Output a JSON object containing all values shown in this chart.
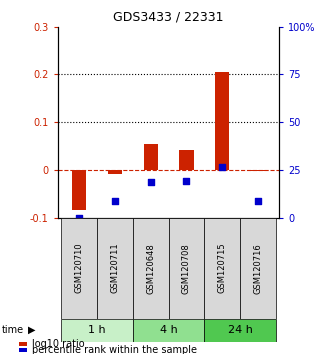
{
  "title": "GDS3433 / 22331",
  "samples": [
    "GSM120710",
    "GSM120711",
    "GSM120648",
    "GSM120708",
    "GSM120715",
    "GSM120716"
  ],
  "time_groups": [
    {
      "label": "1 h",
      "color": "#c8f0c8"
    },
    {
      "label": "4 h",
      "color": "#90e090"
    },
    {
      "label": "24 h",
      "color": "#50c850"
    }
  ],
  "log10_ratio": [
    -0.083,
    -0.008,
    0.055,
    0.042,
    0.205,
    -0.003
  ],
  "percentile_rank": [
    0.0,
    8.5,
    18.5,
    19.0,
    26.5,
    8.5
  ],
  "ylim_left": [
    -0.1,
    0.3
  ],
  "ylim_right": [
    0,
    100
  ],
  "yticks_left": [
    -0.1,
    0.0,
    0.1,
    0.2,
    0.3
  ],
  "yticks_right": [
    0,
    25,
    50,
    75,
    100
  ],
  "ytick_labels_right": [
    "0",
    "25",
    "50",
    "75",
    "100%"
  ],
  "hlines": [
    0.1,
    0.2
  ],
  "bar_color": "#cc2200",
  "scatter_color": "#0000cc",
  "zero_line_color": "#cc2200",
  "hline_color": "#000000",
  "bar_width": 0.4,
  "scatter_size": 22
}
